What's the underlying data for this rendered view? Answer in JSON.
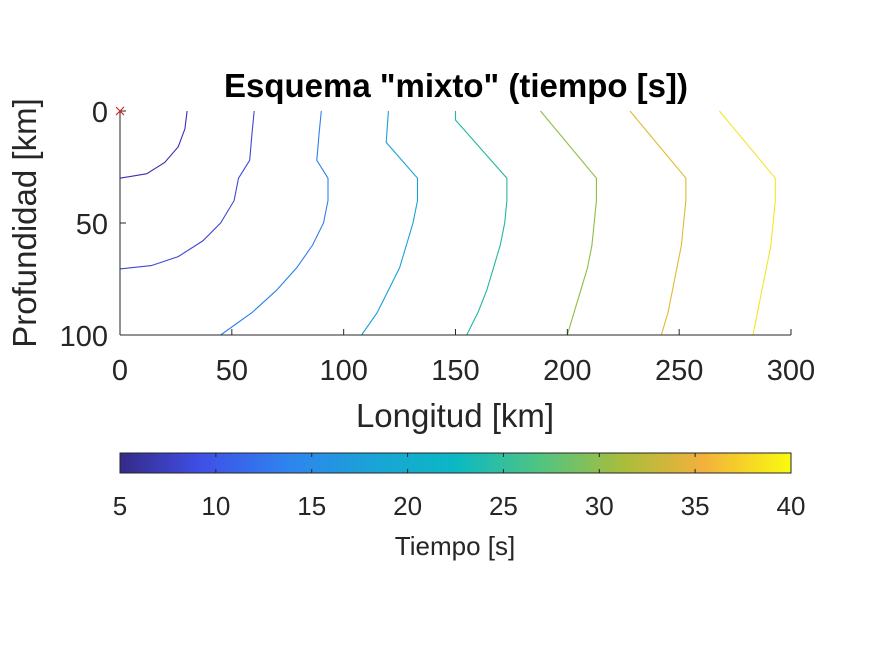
{
  "chart_data": {
    "type": "contour",
    "title": "Esquema \"mixto\" (tiempo [s])",
    "xlabel": "Longitud [km]",
    "ylabel": "Profundidad [km]",
    "xlim": [
      0,
      300
    ],
    "ylim": [
      0,
      100
    ],
    "y_reversed": true,
    "xticks": [
      0,
      50,
      100,
      150,
      200,
      250,
      300
    ],
    "yticks": [
      0,
      50,
      100
    ],
    "grid": false,
    "source_marker": {
      "x": 0,
      "y": 0,
      "symbol": "x",
      "color": "#d62728"
    },
    "colorbar": {
      "label": "Tiempo [s]",
      "limits": [
        5,
        40
      ],
      "ticks": [
        5,
        10,
        15,
        20,
        25,
        30,
        35,
        40
      ],
      "colormap": "parula",
      "placement": "bottom"
    },
    "contours": [
      {
        "level": 5,
        "color": "#3a2fb0",
        "points": [
          [
            30,
            0
          ],
          [
            29,
            8
          ],
          [
            26,
            16
          ],
          [
            20,
            23
          ],
          [
            12,
            28
          ],
          [
            0,
            30
          ]
        ]
      },
      {
        "level": 10,
        "color": "#3f46d8",
        "points": [
          [
            60,
            0
          ],
          [
            59,
            10
          ],
          [
            58,
            22
          ],
          [
            53,
            30
          ],
          [
            51,
            40
          ],
          [
            45,
            50
          ],
          [
            37,
            58
          ],
          [
            26,
            65
          ],
          [
            14,
            69
          ],
          [
            0,
            70.5
          ]
        ]
      },
      {
        "level": 15,
        "color": "#2d7ef0",
        "points": [
          [
            90,
            0
          ],
          [
            89,
            10
          ],
          [
            88,
            22
          ],
          [
            93,
            30
          ],
          [
            93,
            40
          ],
          [
            91,
            50
          ],
          [
            86,
            60
          ],
          [
            79,
            70
          ],
          [
            70,
            80
          ],
          [
            59,
            90
          ],
          [
            45,
            100
          ]
        ]
      },
      {
        "level": 20,
        "color": "#1aa0d8",
        "points": [
          [
            120,
            0
          ],
          [
            119,
            14
          ],
          [
            133,
            30
          ],
          [
            133,
            40
          ],
          [
            131,
            50
          ],
          [
            128,
            60
          ],
          [
            125,
            70
          ],
          [
            120,
            80
          ],
          [
            115,
            90
          ],
          [
            108,
            100
          ]
        ]
      },
      {
        "level": 25,
        "color": "#22b8a0",
        "points": [
          [
            150,
            0
          ],
          [
            150,
            4
          ],
          [
            173,
            30
          ],
          [
            173,
            40
          ],
          [
            172,
            50
          ],
          [
            170,
            60
          ],
          [
            167,
            70
          ],
          [
            164,
            80
          ],
          [
            160,
            90
          ],
          [
            155,
            100
          ]
        ]
      },
      {
        "level": 30,
        "color": "#8cbd40",
        "points": [
          [
            188,
            0
          ],
          [
            213,
            30
          ],
          [
            213,
            40
          ],
          [
            212,
            50
          ],
          [
            211,
            60
          ],
          [
            209,
            70
          ],
          [
            206,
            80
          ],
          [
            203,
            90
          ],
          [
            200,
            100
          ]
        ]
      },
      {
        "level": 35,
        "color": "#dfba30",
        "points": [
          [
            228,
            0
          ],
          [
            253,
            30
          ],
          [
            253,
            40
          ],
          [
            252,
            50
          ],
          [
            251,
            60
          ],
          [
            249,
            70
          ],
          [
            247,
            80
          ],
          [
            245,
            90
          ],
          [
            242,
            100
          ]
        ]
      },
      {
        "level": 40,
        "color": "#f2e62a",
        "points": [
          [
            268,
            0
          ],
          [
            293,
            30
          ],
          [
            293,
            40
          ],
          [
            292,
            50
          ],
          [
            291,
            60
          ],
          [
            289,
            70
          ],
          [
            287,
            80
          ],
          [
            285,
            90
          ],
          [
            283,
            100
          ]
        ]
      }
    ]
  }
}
